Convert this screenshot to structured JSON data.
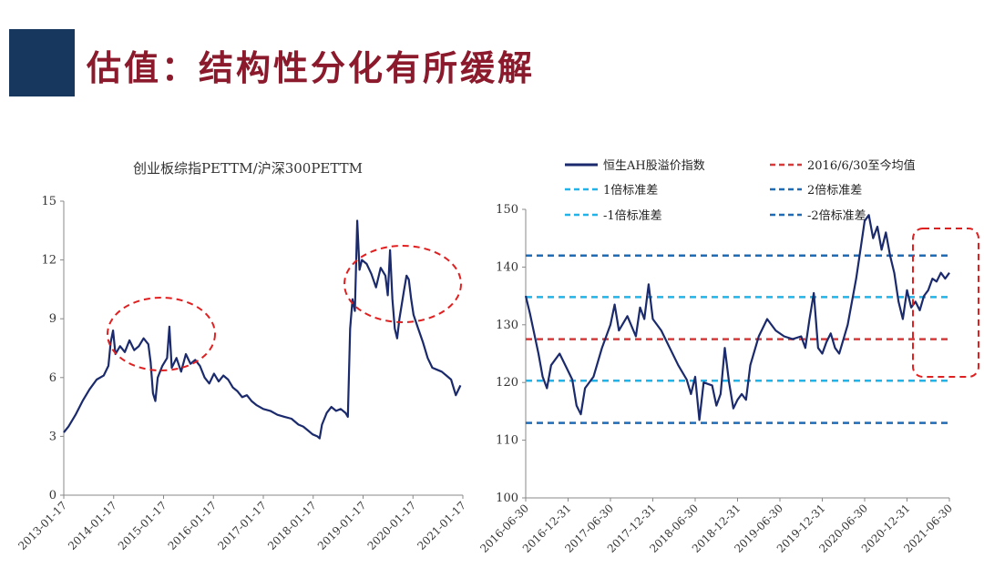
{
  "page": {
    "title": "估值：结构性分化有所缓解"
  },
  "colors": {
    "title_bar": "#17375e",
    "title_text": "#8b1a2c",
    "series_line": "#1a2a6c",
    "highlight_ellipse": "#e02020",
    "mean_line": "#d63a3a",
    "sd1_line": "#22b4e8",
    "sd2_line": "#1f6bb5"
  },
  "chart_data": [
    {
      "type": "line",
      "title": "创业板综指PETTM/沪深300PETTM",
      "xlabel": "",
      "ylabel": "",
      "ylim": [
        0,
        15
      ],
      "yticks": [
        0,
        3,
        6,
        9,
        12,
        15
      ],
      "xticks": [
        "2013-01-17",
        "2014-01-17",
        "2015-01-17",
        "2016-01-17",
        "2017-01-17",
        "2018-01-17",
        "2019-01-17",
        "2020-01-17",
        "2021-01-17"
      ],
      "x_start": 2013.05,
      "x_end": 2021.55,
      "points": [
        [
          2013.05,
          3.2
        ],
        [
          2013.15,
          3.5
        ],
        [
          2013.3,
          4.1
        ],
        [
          2013.45,
          4.8
        ],
        [
          2013.6,
          5.4
        ],
        [
          2013.75,
          5.9
        ],
        [
          2013.9,
          6.1
        ],
        [
          2014.0,
          6.6
        ],
        [
          2014.05,
          7.8
        ],
        [
          2014.1,
          8.4
        ],
        [
          2014.15,
          7.2
        ],
        [
          2014.25,
          7.6
        ],
        [
          2014.35,
          7.3
        ],
        [
          2014.45,
          7.9
        ],
        [
          2014.55,
          7.4
        ],
        [
          2014.65,
          7.6
        ],
        [
          2014.75,
          8.0
        ],
        [
          2014.85,
          7.7
        ],
        [
          2014.9,
          6.8
        ],
        [
          2014.95,
          5.2
        ],
        [
          2015.0,
          4.8
        ],
        [
          2015.05,
          6.0
        ],
        [
          2015.15,
          6.6
        ],
        [
          2015.25,
          7.0
        ],
        [
          2015.3,
          8.6
        ],
        [
          2015.35,
          6.5
        ],
        [
          2015.45,
          7.0
        ],
        [
          2015.55,
          6.3
        ],
        [
          2015.65,
          7.2
        ],
        [
          2015.75,
          6.7
        ],
        [
          2015.85,
          6.9
        ],
        [
          2015.95,
          6.6
        ],
        [
          2016.05,
          6.0
        ],
        [
          2016.15,
          5.7
        ],
        [
          2016.25,
          6.2
        ],
        [
          2016.35,
          5.8
        ],
        [
          2016.45,
          6.1
        ],
        [
          2016.55,
          5.9
        ],
        [
          2016.65,
          5.5
        ],
        [
          2016.75,
          5.3
        ],
        [
          2016.85,
          5.0
        ],
        [
          2016.95,
          5.1
        ],
        [
          2017.05,
          4.8
        ],
        [
          2017.15,
          4.6
        ],
        [
          2017.3,
          4.4
        ],
        [
          2017.45,
          4.3
        ],
        [
          2017.6,
          4.1
        ],
        [
          2017.75,
          4.0
        ],
        [
          2017.9,
          3.9
        ],
        [
          2018.05,
          3.6
        ],
        [
          2018.15,
          3.5
        ],
        [
          2018.25,
          3.3
        ],
        [
          2018.35,
          3.1
        ],
        [
          2018.45,
          3.0
        ],
        [
          2018.5,
          2.9
        ],
        [
          2018.55,
          3.6
        ],
        [
          2018.65,
          4.2
        ],
        [
          2018.75,
          4.5
        ],
        [
          2018.85,
          4.3
        ],
        [
          2018.95,
          4.4
        ],
        [
          2019.05,
          4.2
        ],
        [
          2019.1,
          4.0
        ],
        [
          2019.15,
          8.5
        ],
        [
          2019.2,
          10.0
        ],
        [
          2019.25,
          9.4
        ],
        [
          2019.3,
          14.0
        ],
        [
          2019.35,
          11.5
        ],
        [
          2019.4,
          12.0
        ],
        [
          2019.5,
          11.8
        ],
        [
          2019.6,
          11.3
        ],
        [
          2019.7,
          10.6
        ],
        [
          2019.8,
          11.6
        ],
        [
          2019.9,
          11.2
        ],
        [
          2019.95,
          10.2
        ],
        [
          2020.0,
          12.5
        ],
        [
          2020.05,
          10.0
        ],
        [
          2020.1,
          8.5
        ],
        [
          2020.15,
          8.0
        ],
        [
          2020.2,
          9.0
        ],
        [
          2020.3,
          10.5
        ],
        [
          2020.35,
          11.2
        ],
        [
          2020.4,
          11.0
        ],
        [
          2020.45,
          10.0
        ],
        [
          2020.5,
          9.2
        ],
        [
          2020.6,
          8.5
        ],
        [
          2020.7,
          7.8
        ],
        [
          2020.8,
          7.0
        ],
        [
          2020.9,
          6.5
        ],
        [
          2021.0,
          6.4
        ],
        [
          2021.1,
          6.3
        ],
        [
          2021.2,
          6.1
        ],
        [
          2021.3,
          5.9
        ],
        [
          2021.4,
          5.1
        ],
        [
          2021.5,
          5.6
        ]
      ]
    },
    {
      "type": "line",
      "title": "",
      "xlabel": "",
      "ylabel": "",
      "ylim": [
        100,
        150
      ],
      "yticks": [
        100,
        110,
        120,
        130,
        140,
        150
      ],
      "xticks": [
        "2016-06-30",
        "2016-12-31",
        "2017-06-30",
        "2017-12-31",
        "2018-06-30",
        "2018-12-31",
        "2019-06-30",
        "2019-12-31",
        "2020-06-30",
        "2020-12-31",
        "2021-06-30"
      ],
      "x_start": 2016.5,
      "x_end": 2021.5,
      "legend": {
        "series": "恒生AH股溢价指数",
        "mean": "2016/6/30至今均值",
        "plus1": "1倍标准差",
        "plus2": "2倍标准差",
        "minus1": "-1倍标准差",
        "minus2": "-2倍标准差"
      },
      "mean": 127.5,
      "plus1": 134.8,
      "plus2": 142.0,
      "minus1": 120.3,
      "minus2": 113.0,
      "points": [
        [
          2016.5,
          135.0
        ],
        [
          2016.55,
          132.0
        ],
        [
          2016.6,
          128.5
        ],
        [
          2016.65,
          125.0
        ],
        [
          2016.7,
          121.0
        ],
        [
          2016.75,
          119.0
        ],
        [
          2016.8,
          123.0
        ],
        [
          2016.9,
          125.0
        ],
        [
          2017.0,
          122.0
        ],
        [
          2017.05,
          120.5
        ],
        [
          2017.1,
          116.0
        ],
        [
          2017.15,
          114.5
        ],
        [
          2017.2,
          119.0
        ],
        [
          2017.3,
          121.0
        ],
        [
          2017.4,
          126.0
        ],
        [
          2017.5,
          130.0
        ],
        [
          2017.55,
          133.5
        ],
        [
          2017.6,
          129.0
        ],
        [
          2017.7,
          131.5
        ],
        [
          2017.8,
          128.0
        ],
        [
          2017.85,
          133.0
        ],
        [
          2017.9,
          131.0
        ],
        [
          2017.95,
          137.0
        ],
        [
          2018.0,
          131.0
        ],
        [
          2018.1,
          129.0
        ],
        [
          2018.2,
          126.0
        ],
        [
          2018.3,
          123.0
        ],
        [
          2018.4,
          120.5
        ],
        [
          2018.45,
          118.0
        ],
        [
          2018.5,
          121.0
        ],
        [
          2018.55,
          113.5
        ],
        [
          2018.6,
          120.0
        ],
        [
          2018.7,
          119.5
        ],
        [
          2018.75,
          116.0
        ],
        [
          2018.8,
          118.0
        ],
        [
          2018.85,
          126.0
        ],
        [
          2018.9,
          120.0
        ],
        [
          2018.95,
          115.5
        ],
        [
          2019.0,
          117.0
        ],
        [
          2019.05,
          118.0
        ],
        [
          2019.1,
          117.0
        ],
        [
          2019.15,
          123.0
        ],
        [
          2019.25,
          128.0
        ],
        [
          2019.35,
          131.0
        ],
        [
          2019.45,
          129.0
        ],
        [
          2019.55,
          128.0
        ],
        [
          2019.65,
          127.5
        ],
        [
          2019.75,
          128.0
        ],
        [
          2019.8,
          126.0
        ],
        [
          2019.85,
          131.0
        ],
        [
          2019.9,
          135.5
        ],
        [
          2019.95,
          126.0
        ],
        [
          2020.0,
          125.0
        ],
        [
          2020.05,
          127.0
        ],
        [
          2020.1,
          128.5
        ],
        [
          2020.15,
          126.0
        ],
        [
          2020.2,
          125.0
        ],
        [
          2020.3,
          130.0
        ],
        [
          2020.4,
          138.0
        ],
        [
          2020.45,
          143.0
        ],
        [
          2020.5,
          148.0
        ],
        [
          2020.55,
          149.0
        ],
        [
          2020.6,
          145.0
        ],
        [
          2020.65,
          147.0
        ],
        [
          2020.7,
          143.0
        ],
        [
          2020.75,
          146.0
        ],
        [
          2020.8,
          142.0
        ],
        [
          2020.85,
          139.0
        ],
        [
          2020.9,
          134.0
        ],
        [
          2020.95,
          131.0
        ],
        [
          2021.0,
          136.0
        ],
        [
          2021.05,
          133.0
        ],
        [
          2021.1,
          134.0
        ],
        [
          2021.15,
          132.5
        ],
        [
          2021.2,
          135.0
        ],
        [
          2021.25,
          136.0
        ],
        [
          2021.3,
          138.0
        ],
        [
          2021.35,
          137.5
        ],
        [
          2021.4,
          139.0
        ],
        [
          2021.45,
          138.0
        ],
        [
          2021.5,
          139.0
        ]
      ]
    }
  ]
}
